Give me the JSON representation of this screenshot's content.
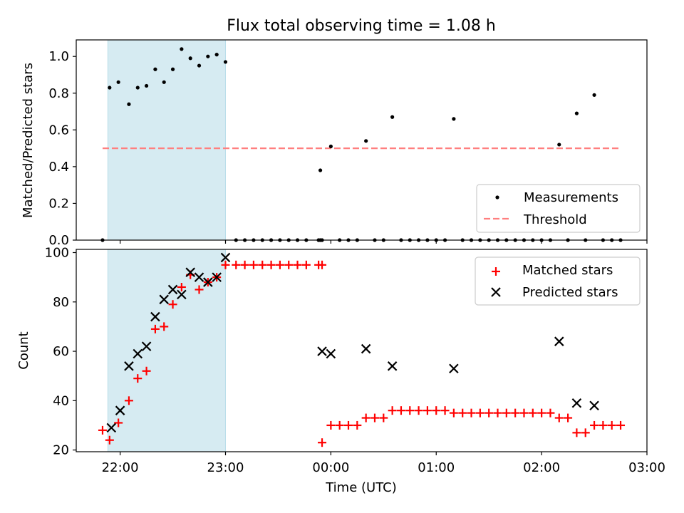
{
  "chart_data": {
    "title": "Flux total observing time = 1.08 h",
    "shaded_region": {
      "start": "21:53",
      "end": "23:00",
      "color": "#add8e6"
    },
    "x_axis": {
      "label": "Time (UTC)",
      "range": [
        "21:35",
        "03:00"
      ],
      "ticks": [
        {
          "time": "22:00",
          "label": "22:00"
        },
        {
          "time": "23:00",
          "label": "23:00"
        },
        {
          "time": "00:00",
          "label": "00:00"
        },
        {
          "time": "01:00",
          "label": "01:00"
        },
        {
          "time": "02:00",
          "label": "02:00"
        },
        {
          "time": "03:00",
          "label": "03:00"
        }
      ]
    },
    "top": {
      "type": "scatter",
      "ylabel": "Matched/Predicted stars",
      "ylim": [
        0,
        1.09
      ],
      "yticks": [
        "0.0",
        "0.2",
        "0.4",
        "0.6",
        "0.8",
        "1.0"
      ],
      "grid": false,
      "legend_position": "lower-right",
      "threshold": {
        "name": "Threshold",
        "value": 0.5,
        "x_range": [
          "21:50",
          "02:45"
        ],
        "color": "#ff7f7f"
      },
      "series": [
        {
          "name": "Measurements",
          "color": "#000000",
          "points": [
            {
              "t": "21:50",
              "y": 0.0
            },
            {
              "t": "21:54",
              "y": 0.83
            },
            {
              "t": "21:59",
              "y": 0.86
            },
            {
              "t": "22:05",
              "y": 0.74
            },
            {
              "t": "22:10",
              "y": 0.83
            },
            {
              "t": "22:15",
              "y": 0.84
            },
            {
              "t": "22:20",
              "y": 0.93
            },
            {
              "t": "22:25",
              "y": 0.86
            },
            {
              "t": "22:30",
              "y": 0.93
            },
            {
              "t": "22:35",
              "y": 1.04
            },
            {
              "t": "22:40",
              "y": 0.99
            },
            {
              "t": "22:45",
              "y": 0.95
            },
            {
              "t": "22:50",
              "y": 1.0
            },
            {
              "t": "22:55",
              "y": 1.01
            },
            {
              "t": "23:00",
              "y": 0.97
            },
            {
              "t": "23:06",
              "y": 0.0
            },
            {
              "t": "23:11",
              "y": 0.0
            },
            {
              "t": "23:16",
              "y": 0.0
            },
            {
              "t": "23:21",
              "y": 0.0
            },
            {
              "t": "23:26",
              "y": 0.0
            },
            {
              "t": "23:31",
              "y": 0.0
            },
            {
              "t": "23:36",
              "y": 0.0
            },
            {
              "t": "23:41",
              "y": 0.0
            },
            {
              "t": "23:46",
              "y": 0.0
            },
            {
              "t": "23:53",
              "y": 0.0
            },
            {
              "t": "23:54",
              "y": 0.0
            },
            {
              "t": "23:55",
              "y": 0.0
            },
            {
              "t": "23:54",
              "y": 0.38
            },
            {
              "t": "00:00",
              "y": 0.51
            },
            {
              "t": "00:05",
              "y": 0.0
            },
            {
              "t": "00:10",
              "y": 0.0
            },
            {
              "t": "00:15",
              "y": 0.0
            },
            {
              "t": "00:20",
              "y": 0.54
            },
            {
              "t": "00:25",
              "y": 0.0
            },
            {
              "t": "00:30",
              "y": 0.0
            },
            {
              "t": "00:35",
              "y": 0.67
            },
            {
              "t": "00:40",
              "y": 0.0
            },
            {
              "t": "00:45",
              "y": 0.0
            },
            {
              "t": "00:50",
              "y": 0.0
            },
            {
              "t": "00:55",
              "y": 0.0
            },
            {
              "t": "01:00",
              "y": 0.0
            },
            {
              "t": "01:05",
              "y": 0.0
            },
            {
              "t": "01:10",
              "y": 0.66
            },
            {
              "t": "01:15",
              "y": 0.0
            },
            {
              "t": "01:20",
              "y": 0.0
            },
            {
              "t": "01:25",
              "y": 0.0
            },
            {
              "t": "01:30",
              "y": 0.0
            },
            {
              "t": "01:35",
              "y": 0.0
            },
            {
              "t": "01:40",
              "y": 0.0
            },
            {
              "t": "01:45",
              "y": 0.0
            },
            {
              "t": "01:50",
              "y": 0.0
            },
            {
              "t": "01:55",
              "y": 0.0
            },
            {
              "t": "02:00",
              "y": 0.0
            },
            {
              "t": "02:05",
              "y": 0.0
            },
            {
              "t": "02:10",
              "y": 0.52
            },
            {
              "t": "02:15",
              "y": 0.0
            },
            {
              "t": "02:20",
              "y": 0.69
            },
            {
              "t": "02:25",
              "y": 0.0
            },
            {
              "t": "02:30",
              "y": 0.79
            },
            {
              "t": "02:35",
              "y": 0.0
            },
            {
              "t": "02:40",
              "y": 0.0
            },
            {
              "t": "02:45",
              "y": 0.0
            }
          ]
        }
      ]
    },
    "bottom": {
      "type": "scatter",
      "ylabel": "Count",
      "ylim": [
        19.3,
        101.3
      ],
      "yticks": [
        "20",
        "40",
        "60",
        "80",
        "100"
      ],
      "grid": false,
      "legend_position": "upper-right",
      "series": [
        {
          "name": "Matched stars",
          "marker": "+",
          "color": "#ff0000",
          "points": [
            {
              "t": "21:50",
              "y": 28
            },
            {
              "t": "21:54",
              "y": 24
            },
            {
              "t": "21:59",
              "y": 31
            },
            {
              "t": "22:05",
              "y": 40
            },
            {
              "t": "22:10",
              "y": 49
            },
            {
              "t": "22:15",
              "y": 52
            },
            {
              "t": "22:20",
              "y": 69
            },
            {
              "t": "22:25",
              "y": 70
            },
            {
              "t": "22:30",
              "y": 79
            },
            {
              "t": "22:35",
              "y": 86
            },
            {
              "t": "22:40",
              "y": 91
            },
            {
              "t": "22:45",
              "y": 85
            },
            {
              "t": "22:50",
              "y": 88
            },
            {
              "t": "22:55",
              "y": 90
            },
            {
              "t": "23:00",
              "y": 95
            },
            {
              "t": "23:06",
              "y": 95
            },
            {
              "t": "23:11",
              "y": 95
            },
            {
              "t": "23:16",
              "y": 95
            },
            {
              "t": "23:21",
              "y": 95
            },
            {
              "t": "23:26",
              "y": 95
            },
            {
              "t": "23:31",
              "y": 95
            },
            {
              "t": "23:36",
              "y": 95
            },
            {
              "t": "23:41",
              "y": 95
            },
            {
              "t": "23:46",
              "y": 95
            },
            {
              "t": "23:53",
              "y": 95
            },
            {
              "t": "23:55",
              "y": 95
            },
            {
              "t": "23:55",
              "y": 23
            },
            {
              "t": "00:00",
              "y": 30
            },
            {
              "t": "00:05",
              "y": 30
            },
            {
              "t": "00:10",
              "y": 30
            },
            {
              "t": "00:15",
              "y": 30
            },
            {
              "t": "00:20",
              "y": 33
            },
            {
              "t": "00:25",
              "y": 33
            },
            {
              "t": "00:30",
              "y": 33
            },
            {
              "t": "00:35",
              "y": 36
            },
            {
              "t": "00:40",
              "y": 36
            },
            {
              "t": "00:45",
              "y": 36
            },
            {
              "t": "00:50",
              "y": 36
            },
            {
              "t": "00:55",
              "y": 36
            },
            {
              "t": "01:00",
              "y": 36
            },
            {
              "t": "01:05",
              "y": 36
            },
            {
              "t": "01:10",
              "y": 35
            },
            {
              "t": "01:15",
              "y": 35
            },
            {
              "t": "01:20",
              "y": 35
            },
            {
              "t": "01:25",
              "y": 35
            },
            {
              "t": "01:30",
              "y": 35
            },
            {
              "t": "01:35",
              "y": 35
            },
            {
              "t": "01:40",
              "y": 35
            },
            {
              "t": "01:45",
              "y": 35
            },
            {
              "t": "01:50",
              "y": 35
            },
            {
              "t": "01:55",
              "y": 35
            },
            {
              "t": "02:00",
              "y": 35
            },
            {
              "t": "02:05",
              "y": 35
            },
            {
              "t": "02:10",
              "y": 33
            },
            {
              "t": "02:15",
              "y": 33
            },
            {
              "t": "02:20",
              "y": 27
            },
            {
              "t": "02:25",
              "y": 27
            },
            {
              "t": "02:30",
              "y": 30
            },
            {
              "t": "02:35",
              "y": 30
            },
            {
              "t": "02:40",
              "y": 30
            },
            {
              "t": "02:45",
              "y": 30
            }
          ]
        },
        {
          "name": "Predicted stars",
          "marker": "x",
          "color": "#000000",
          "points": [
            {
              "t": "21:55",
              "y": 29
            },
            {
              "t": "22:00",
              "y": 36
            },
            {
              "t": "22:05",
              "y": 54
            },
            {
              "t": "22:10",
              "y": 59
            },
            {
              "t": "22:15",
              "y": 62
            },
            {
              "t": "22:20",
              "y": 74
            },
            {
              "t": "22:25",
              "y": 81
            },
            {
              "t": "22:30",
              "y": 85
            },
            {
              "t": "22:35",
              "y": 83
            },
            {
              "t": "22:40",
              "y": 92
            },
            {
              "t": "22:45",
              "y": 90
            },
            {
              "t": "22:50",
              "y": 88
            },
            {
              "t": "22:55",
              "y": 90
            },
            {
              "t": "23:00",
              "y": 98
            },
            {
              "t": "23:55",
              "y": 60
            },
            {
              "t": "00:00",
              "y": 59
            },
            {
              "t": "00:20",
              "y": 61
            },
            {
              "t": "00:35",
              "y": 54
            },
            {
              "t": "01:10",
              "y": 53
            },
            {
              "t": "02:10",
              "y": 64
            },
            {
              "t": "02:20",
              "y": 39
            },
            {
              "t": "02:30",
              "y": 38
            }
          ]
        }
      ]
    }
  }
}
